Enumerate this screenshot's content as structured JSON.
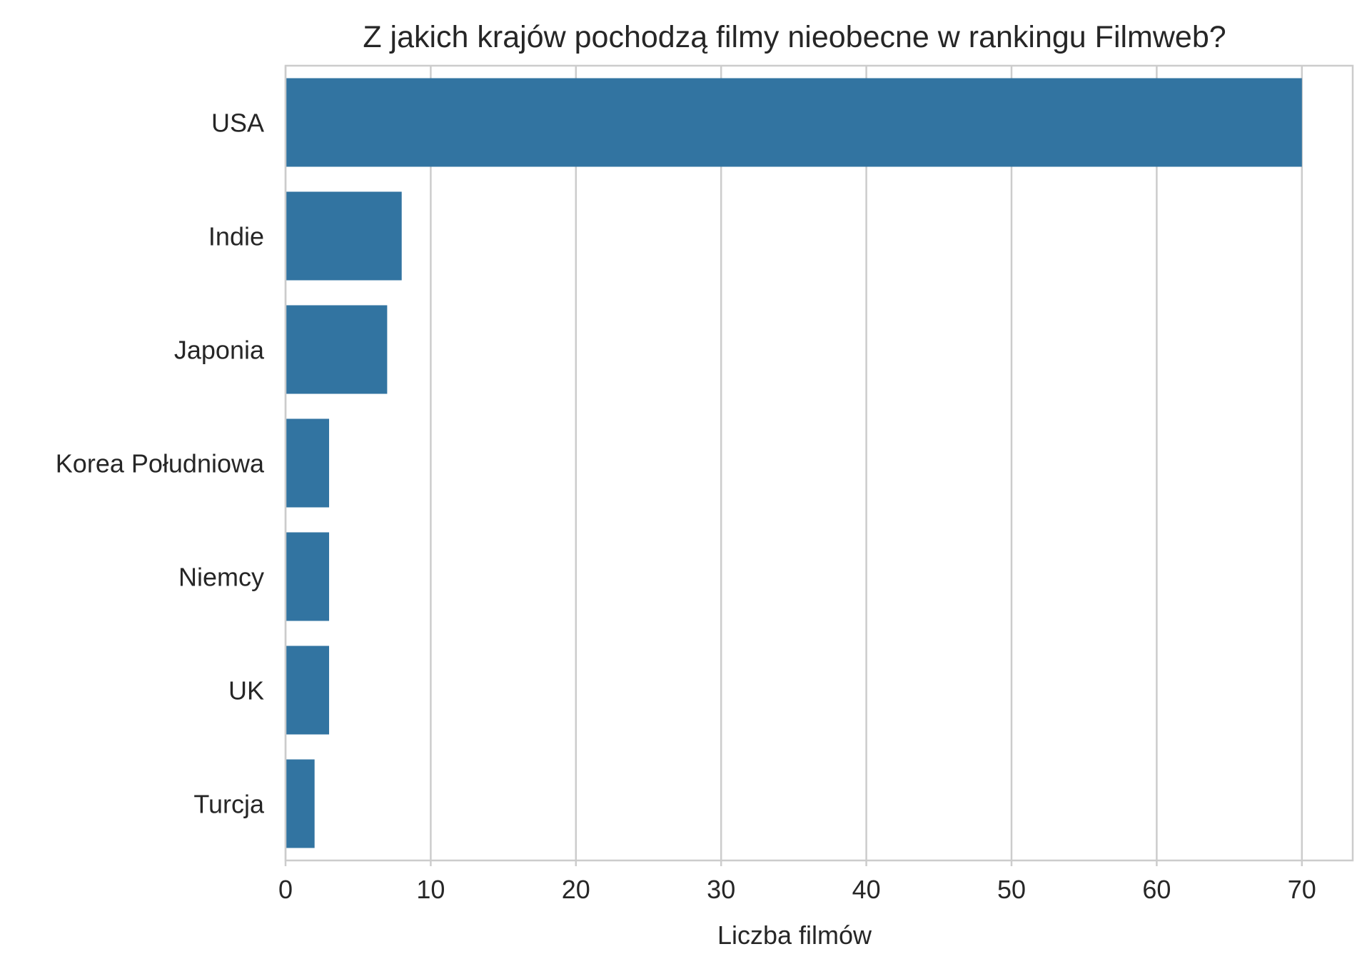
{
  "chart_data": {
    "type": "bar",
    "orientation": "horizontal",
    "title": "Z jakich krajów pochodzą filmy nieobecne w rankingu Filmweb?",
    "xlabel": "Liczba filmów",
    "ylabel": "",
    "categories": [
      "USA",
      "Indie",
      "Japonia",
      "Korea Południowa",
      "Niemcy",
      "UK",
      "Turcja"
    ],
    "values": [
      70,
      8,
      7,
      3,
      3,
      3,
      2
    ],
    "xlim": [
      0,
      73.5
    ],
    "xticks": [
      0,
      10,
      20,
      30,
      40,
      50,
      60,
      70
    ],
    "grid": "vertical",
    "bar_color": "#3274a1",
    "grid_color": "#cccccc"
  }
}
